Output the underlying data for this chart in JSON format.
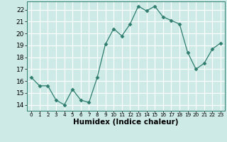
{
  "x": [
    0,
    1,
    2,
    3,
    4,
    5,
    6,
    7,
    8,
    9,
    10,
    11,
    12,
    13,
    14,
    15,
    16,
    17,
    18,
    19,
    20,
    21,
    22,
    23
  ],
  "y": [
    16.3,
    15.6,
    15.6,
    14.4,
    14.0,
    15.3,
    14.4,
    14.2,
    16.3,
    19.1,
    20.4,
    19.8,
    20.8,
    22.3,
    21.9,
    22.3,
    21.4,
    21.1,
    20.8,
    18.4,
    17.0,
    17.5,
    18.7,
    19.2
  ],
  "line_color": "#2e7d6e",
  "marker": "D",
  "marker_size": 2.5,
  "bg_color": "#ceeae7",
  "grid_color": "#ffffff",
  "xlabel": "Humidex (Indice chaleur)",
  "xlim": [
    -0.5,
    23.5
  ],
  "ylim": [
    13.5,
    22.7
  ],
  "yticks": [
    14,
    15,
    16,
    17,
    18,
    19,
    20,
    21,
    22
  ],
  "xticks": [
    0,
    1,
    2,
    3,
    4,
    5,
    6,
    7,
    8,
    9,
    10,
    11,
    12,
    13,
    14,
    15,
    16,
    17,
    18,
    19,
    20,
    21,
    22,
    23
  ],
  "xlabel_fontsize": 7.5,
  "tick_fontsize": 6.5,
  "xtick_fontsize": 5.2
}
